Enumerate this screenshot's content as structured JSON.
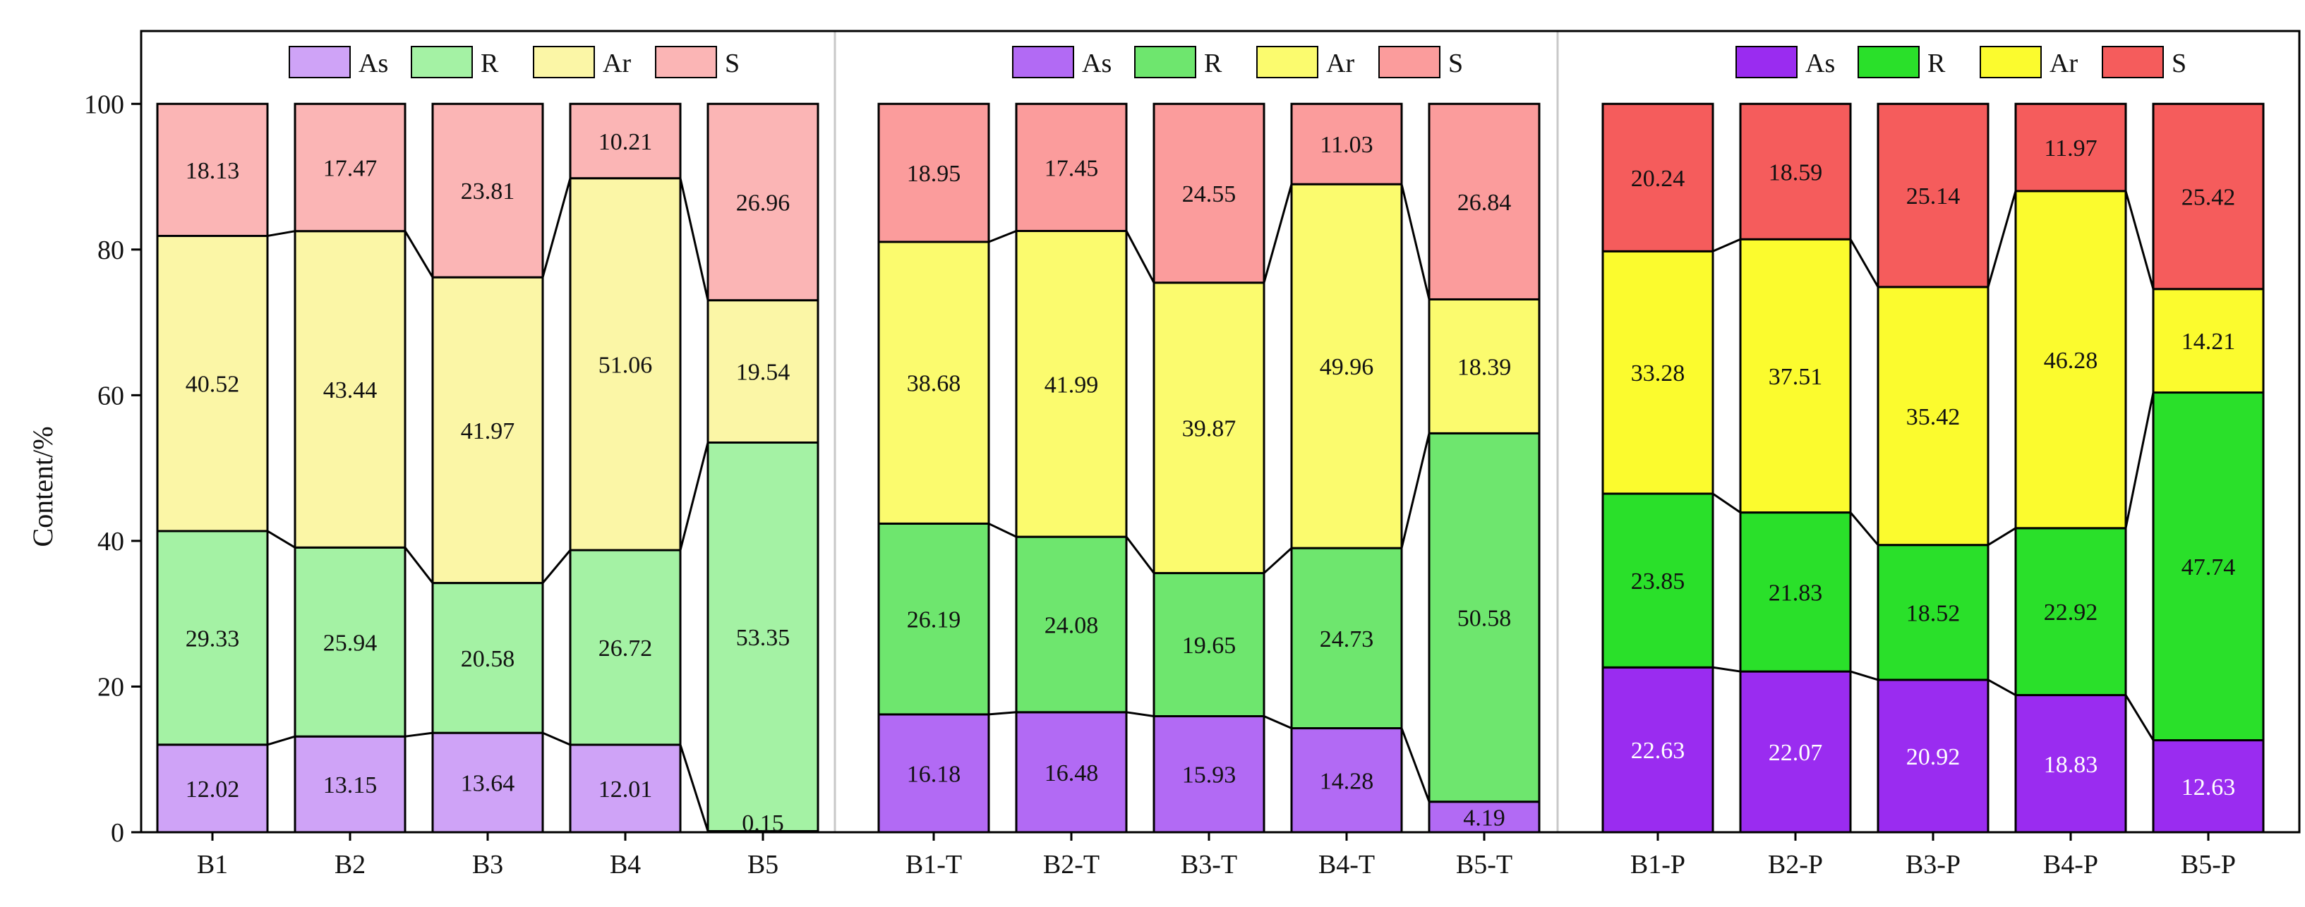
{
  "chart_data": {
    "type": "stacked-bar",
    "ylabel": "Content/%",
    "ylim": [
      0,
      110
    ],
    "yticks": [
      0,
      20,
      40,
      60,
      80,
      100
    ],
    "stack_order": [
      "As",
      "R",
      "Ar",
      "S"
    ],
    "panels": [
      {
        "legend": [
          "As",
          "R",
          "Ar",
          "S"
        ],
        "colors": {
          "As": "#cfa3f7",
          "R": "#a4f2a4",
          "Ar": "#fbf6a6",
          "S": "#fbb5b5"
        },
        "label_colors": {
          "As": "#111111",
          "R": "#111111",
          "Ar": "#111111",
          "S": "#111111"
        },
        "categories": [
          "B1",
          "B2",
          "B3",
          "B4",
          "B5"
        ],
        "series": [
          {
            "name": "As",
            "values": [
              12.02,
              13.15,
              13.64,
              12.01,
              0.15
            ]
          },
          {
            "name": "R",
            "values": [
              29.33,
              25.94,
              20.58,
              26.72,
              53.35
            ]
          },
          {
            "name": "Ar",
            "values": [
              40.52,
              43.44,
              41.97,
              51.06,
              19.54
            ]
          },
          {
            "name": "S",
            "values": [
              18.13,
              17.47,
              23.81,
              10.21,
              26.96
            ]
          }
        ]
      },
      {
        "legend": [
          "As",
          "R",
          "Ar",
          "S"
        ],
        "colors": {
          "As": "#b26af4",
          "R": "#6ee66e",
          "Ar": "#fbfb6e",
          "S": "#fb9c9c"
        },
        "label_colors": {
          "As": "#111111",
          "R": "#111111",
          "Ar": "#111111",
          "S": "#111111"
        },
        "categories": [
          "B1-T",
          "B2-T",
          "B3-T",
          "B4-T",
          "B5-T"
        ],
        "series": [
          {
            "name": "As",
            "values": [
              16.18,
              16.48,
              15.93,
              14.28,
              4.19
            ]
          },
          {
            "name": "R",
            "values": [
              26.19,
              24.08,
              19.65,
              24.73,
              50.58
            ]
          },
          {
            "name": "Ar",
            "values": [
              38.68,
              41.99,
              39.87,
              49.96,
              18.39
            ]
          },
          {
            "name": "S",
            "values": [
              18.95,
              17.45,
              24.55,
              11.03,
              26.84
            ]
          }
        ]
      },
      {
        "legend": [
          "As",
          "R",
          "Ar",
          "S"
        ],
        "colors": {
          "As": "#9a2cf0",
          "R": "#2ae02a",
          "Ar": "#fbfb2e",
          "S": "#f55c5c"
        },
        "label_colors": {
          "As": "#ffffff",
          "R": "#111111",
          "Ar": "#111111",
          "S": "#111111"
        },
        "categories": [
          "B1-P",
          "B2-P",
          "B3-P",
          "B4-P",
          "B5-P"
        ],
        "series": [
          {
            "name": "As",
            "values": [
              22.63,
              22.07,
              20.92,
              18.83,
              12.63
            ]
          },
          {
            "name": "R",
            "values": [
              23.85,
              21.83,
              18.52,
              22.92,
              47.74
            ]
          },
          {
            "name": "Ar",
            "values": [
              33.28,
              37.51,
              35.42,
              46.28,
              14.21
            ]
          },
          {
            "name": "S",
            "values": [
              20.24,
              18.59,
              25.14,
              11.97,
              25.42
            ]
          }
        ]
      }
    ]
  }
}
